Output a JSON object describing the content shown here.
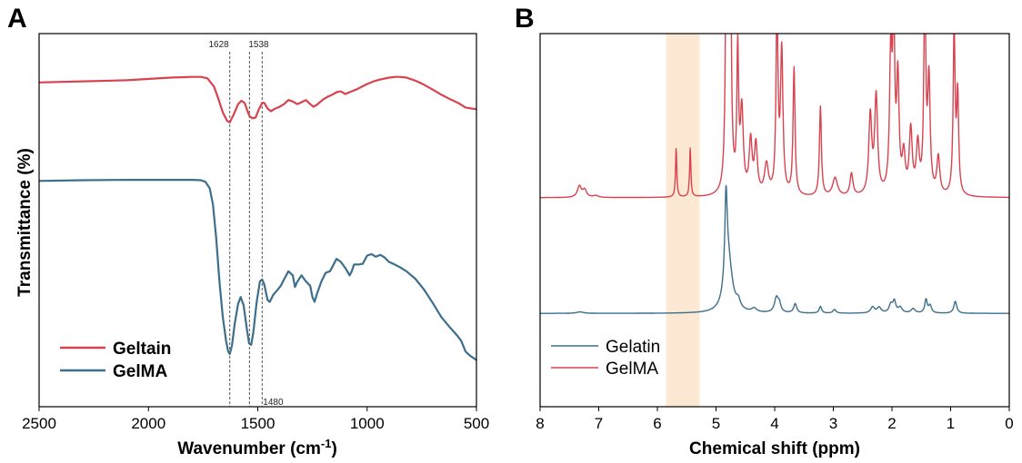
{
  "colors": {
    "red": "#d9434f",
    "blue": "#3d6f8c",
    "highlight": "#fde9d3"
  },
  "chart_data": [
    {
      "panel": "A",
      "type": "line",
      "xlabel_main": "Wavenumber (cm",
      "xlabel_sup": "-1",
      "xlabel_end": ")",
      "ylabel": "Transmittance (%)",
      "xlim": [
        2500,
        500
      ],
      "ylim": [
        0,
        100
      ],
      "x_reversed": true,
      "y_ticks_shown": false,
      "x_ticks": [
        "2500",
        "2000",
        "1500",
        "1000",
        "500"
      ],
      "markers": [
        {
          "x": 1628,
          "label": "1628",
          "label_position": "top"
        },
        {
          "x": 1538,
          "label": "1538",
          "label_position": "top"
        },
        {
          "x": 1480,
          "label": "1480",
          "label_position": "bottom"
        }
      ],
      "legend": {
        "placement": "bottom-left"
      },
      "series": [
        {
          "name": "Geltain",
          "color": "#d9434f",
          "points": [
            [
              2500,
              86.9
            ],
            [
              2300,
              87.2
            ],
            [
              2100,
              87.5
            ],
            [
              1900,
              88.2
            ],
            [
              1800,
              88.4
            ],
            [
              1760,
              88.4
            ],
            [
              1730,
              88
            ],
            [
              1700,
              85.8
            ],
            [
              1680,
              82.5
            ],
            [
              1660,
              78.9
            ],
            [
              1640,
              76.6
            ],
            [
              1628,
              76.2
            ],
            [
              1610,
              78.3
            ],
            [
              1590,
              81.1
            ],
            [
              1575,
              82
            ],
            [
              1560,
              81.4
            ],
            [
              1545,
              78.9
            ],
            [
              1538,
              77.9
            ],
            [
              1525,
              77.3
            ],
            [
              1510,
              77.5
            ],
            [
              1495,
              79.7
            ],
            [
              1480,
              81.4
            ],
            [
              1470,
              81.4
            ],
            [
              1455,
              79.9
            ],
            [
              1440,
              79.2
            ],
            [
              1420,
              79.9
            ],
            [
              1400,
              80.4
            ],
            [
              1380,
              81.1
            ],
            [
              1360,
              82.2
            ],
            [
              1340,
              81.8
            ],
            [
              1320,
              81.1
            ],
            [
              1300,
              81.6
            ],
            [
              1280,
              82.2
            ],
            [
              1260,
              81.1
            ],
            [
              1245,
              80.4
            ],
            [
              1230,
              80.9
            ],
            [
              1200,
              82.4
            ],
            [
              1180,
              83.1
            ],
            [
              1160,
              83.6
            ],
            [
              1140,
              84.3
            ],
            [
              1120,
              84.5
            ],
            [
              1100,
              83.8
            ],
            [
              1080,
              84.3
            ],
            [
              1050,
              85
            ],
            [
              1020,
              85.9
            ],
            [
              1000,
              86.5
            ],
            [
              970,
              87.2
            ],
            [
              940,
              87.7
            ],
            [
              900,
              88.2
            ],
            [
              870,
              88.4
            ],
            [
              850,
              88.4
            ],
            [
              820,
              88.2
            ],
            [
              780,
              87.4
            ],
            [
              740,
              86.3
            ],
            [
              700,
              85
            ],
            [
              660,
              83.6
            ],
            [
              620,
              82.4
            ],
            [
              580,
              81.3
            ],
            [
              550,
              80.2
            ],
            [
              500,
              79.7
            ]
          ]
        },
        {
          "name": "GelMA",
          "color": "#3d6f8c",
          "points": [
            [
              2500,
              60.5
            ],
            [
              2300,
              60.7
            ],
            [
              2100,
              60.8
            ],
            [
              1900,
              60.8
            ],
            [
              1800,
              60.8
            ],
            [
              1760,
              60.7
            ],
            [
              1740,
              60.3
            ],
            [
              1720,
              58.6
            ],
            [
              1705,
              54.2
            ],
            [
              1690,
              45.1
            ],
            [
              1675,
              33.4
            ],
            [
              1660,
              24.1
            ],
            [
              1645,
              17.7
            ],
            [
              1635,
              14.8
            ],
            [
              1628,
              14.1
            ],
            [
              1618,
              16.4
            ],
            [
              1605,
              22.3
            ],
            [
              1590,
              27.6
            ],
            [
              1578,
              29.4
            ],
            [
              1565,
              27.2
            ],
            [
              1550,
              20.8
            ],
            [
              1540,
              17
            ],
            [
              1530,
              16.6
            ],
            [
              1520,
              20.1
            ],
            [
              1505,
              28.1
            ],
            [
              1490,
              33.6
            ],
            [
              1480,
              34.1
            ],
            [
              1470,
              32.7
            ],
            [
              1455,
              28.6
            ],
            [
              1445,
              28.1
            ],
            [
              1430,
              29.9
            ],
            [
              1410,
              31.3
            ],
            [
              1395,
              32.4
            ],
            [
              1380,
              34.1
            ],
            [
              1360,
              36.3
            ],
            [
              1340,
              35.2
            ],
            [
              1330,
              32.1
            ],
            [
              1320,
              33.4
            ],
            [
              1300,
              35.2
            ],
            [
              1280,
              33.6
            ],
            [
              1260,
              32.4
            ],
            [
              1250,
              29.4
            ],
            [
              1240,
              28.1
            ],
            [
              1230,
              30.1
            ],
            [
              1210,
              33.4
            ],
            [
              1190,
              35.9
            ],
            [
              1170,
              36.3
            ],
            [
              1160,
              37.4
            ],
            [
              1140,
              39.6
            ],
            [
              1120,
              38.8
            ],
            [
              1100,
              37.2
            ],
            [
              1080,
              35.2
            ],
            [
              1070,
              36.3
            ],
            [
              1060,
              38.1
            ],
            [
              1040,
              38.1
            ],
            [
              1020,
              38.3
            ],
            [
              1000,
              40.5
            ],
            [
              980,
              40.9
            ],
            [
              960,
              40.2
            ],
            [
              940,
              40.7
            ],
            [
              920,
              40
            ],
            [
              900,
              38.8
            ],
            [
              880,
              38.3
            ],
            [
              850,
              37.4
            ],
            [
              820,
              36.3
            ],
            [
              780,
              34.3
            ],
            [
              740,
              31.4
            ],
            [
              700,
              27.8
            ],
            [
              660,
              24
            ],
            [
              620,
              21.2
            ],
            [
              590,
              19.2
            ],
            [
              570,
              17.7
            ],
            [
              550,
              14.8
            ],
            [
              530,
              13.7
            ],
            [
              500,
              12.5
            ]
          ]
        }
      ]
    },
    {
      "panel": "B",
      "type": "line",
      "xlabel": "Chemical shift (ppm)",
      "xlim": [
        8,
        0
      ],
      "ylim": [
        0,
        100
      ],
      "x_reversed": true,
      "y_ticks_shown": false,
      "x_ticks": [
        "8",
        "7",
        "6",
        "5",
        "4",
        "3",
        "2",
        "1",
        "0"
      ],
      "highlight_band": [
        5.85,
        5.28
      ],
      "legend": {
        "placement": "bottom-left"
      },
      "series": [
        {
          "name": "Gelatin",
          "color": "#3d6f8c",
          "baseline": 25,
          "peaks": [
            [
              7.32,
              0.4,
              0.07
            ],
            [
              4.83,
              23,
              0.025
            ],
            [
              4.79,
              14,
              0.08
            ],
            [
              4.62,
              2,
              0.04
            ],
            [
              4.35,
              1,
              0.05
            ],
            [
              3.97,
              4,
              0.04
            ],
            [
              3.92,
              2,
              0.03
            ],
            [
              3.65,
              2.5,
              0.03
            ],
            [
              3.22,
              1.8,
              0.025
            ],
            [
              2.98,
              1,
              0.03
            ],
            [
              2.33,
              1.6,
              0.04
            ],
            [
              2.22,
              1.5,
              0.04
            ],
            [
              2.02,
              2.2,
              0.035
            ],
            [
              1.96,
              3,
              0.03
            ],
            [
              1.86,
              1.5,
              0.04
            ],
            [
              1.64,
              1.2,
              0.04
            ],
            [
              1.42,
              3.6,
              0.025
            ],
            [
              1.35,
              2,
              0.03
            ],
            [
              0.92,
              3.2,
              0.03
            ]
          ]
        },
        {
          "name": "GelMA",
          "color": "#d9434f",
          "baseline": 56,
          "peaks": [
            [
              7.33,
              3,
              0.04
            ],
            [
              7.24,
              2,
              0.04
            ],
            [
              7.05,
              0.5,
              0.05
            ],
            [
              5.68,
              13,
              0.013
            ],
            [
              5.44,
              13,
              0.013
            ],
            [
              4.82,
              80,
              0.02
            ],
            [
              4.76,
              80,
              0.02
            ],
            [
              4.63,
              37,
              0.018
            ],
            [
              4.56,
              22,
              0.03
            ],
            [
              4.41,
              14,
              0.03
            ],
            [
              4.32,
              13,
              0.03
            ],
            [
              4.14,
              8,
              0.04
            ],
            [
              3.96,
              50,
              0.02
            ],
            [
              3.88,
              38,
              0.025
            ],
            [
              3.67,
              34,
              0.02
            ],
            [
              3.22,
              24,
              0.02
            ],
            [
              2.97,
              5,
              0.05
            ],
            [
              2.69,
              6,
              0.03
            ],
            [
              2.37,
              21,
              0.03
            ],
            [
              2.27,
              26,
              0.03
            ],
            [
              2.02,
              37,
              0.025
            ],
            [
              1.97,
              45,
              0.02
            ],
            [
              1.9,
              30,
              0.025
            ],
            [
              1.8,
              10,
              0.03
            ],
            [
              1.68,
              17,
              0.03
            ],
            [
              1.56,
              13,
              0.03
            ],
            [
              1.44,
              55,
              0.02
            ],
            [
              1.37,
              30,
              0.025
            ],
            [
              1.21,
              10,
              0.03
            ],
            [
              0.94,
              44,
              0.02
            ],
            [
              0.88,
              26,
              0.02
            ]
          ]
        }
      ]
    }
  ]
}
